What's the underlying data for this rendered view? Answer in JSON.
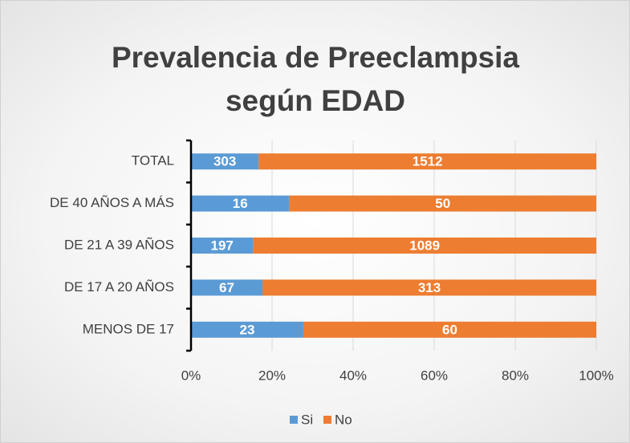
{
  "chart_data": {
    "type": "bar",
    "orientation": "horizontal",
    "stacked": "percent",
    "title": "Prevalencia de Preeclampsia según EDAD",
    "categories": [
      "TOTAL",
      "DE 40 AÑOS A MÁS",
      "DE 21 A 39 AÑOS",
      "DE 17 A 20 AÑOS",
      "MENOS DE 17"
    ],
    "series": [
      {
        "name": "Si",
        "color": "#5b9bd5",
        "values": [
          303,
          16,
          197,
          67,
          23
        ]
      },
      {
        "name": "No",
        "color": "#ed7d31",
        "values": [
          1512,
          50,
          1089,
          313,
          60
        ]
      }
    ],
    "xlim": [
      0,
      100
    ],
    "xticks": [
      {
        "value": 0,
        "label": "0%"
      },
      {
        "value": 20,
        "label": "20%"
      },
      {
        "value": 40,
        "label": "40%"
      },
      {
        "value": 60,
        "label": "60%"
      },
      {
        "value": 80,
        "label": "80%"
      },
      {
        "value": 100,
        "label": "100%"
      }
    ],
    "grid": true,
    "legend": "bottom"
  }
}
